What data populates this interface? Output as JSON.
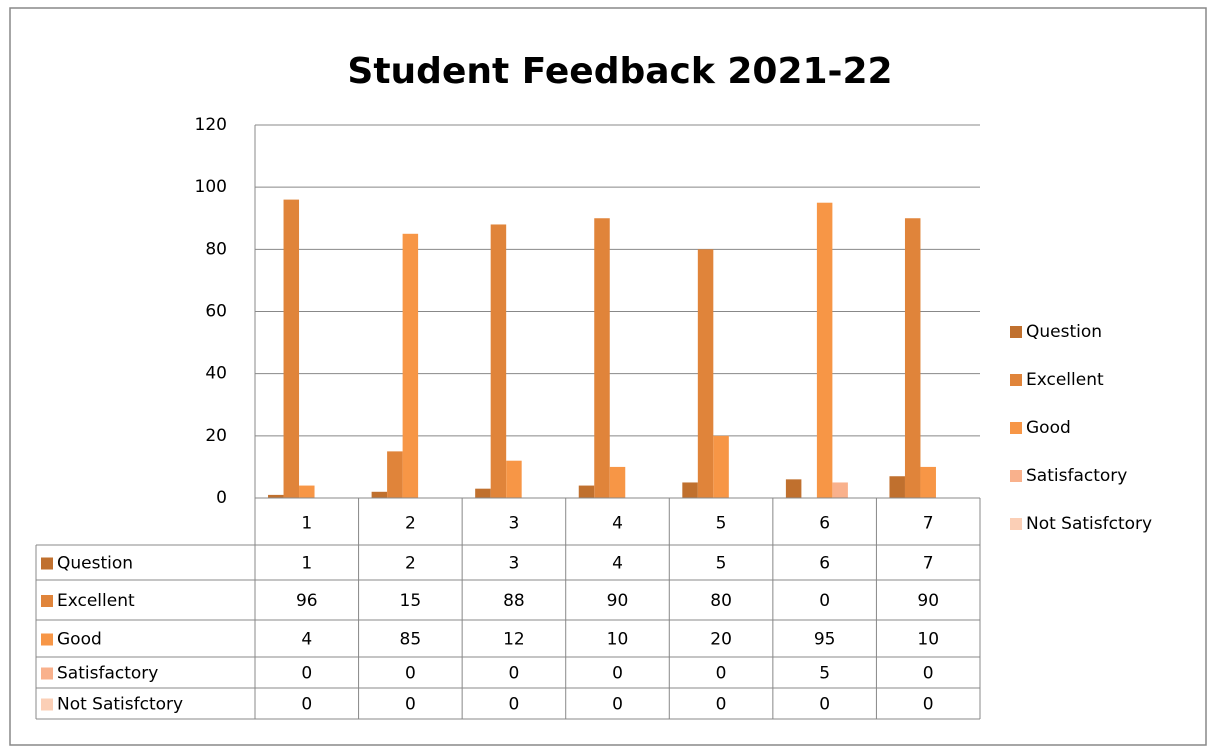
{
  "chart_data": {
    "type": "bar",
    "title": "Student Feedback 2021-22",
    "categories": [
      "1",
      "2",
      "3",
      "4",
      "5",
      "6",
      "7"
    ],
    "series": [
      {
        "name": "Question",
        "color": "#c0702e",
        "values": [
          1,
          2,
          3,
          4,
          5,
          6,
          7
        ]
      },
      {
        "name": "Excellent",
        "color": "#e0843a",
        "values": [
          96,
          15,
          88,
          90,
          80,
          0,
          90
        ]
      },
      {
        "name": "Good",
        "color": "#f79646",
        "values": [
          4,
          85,
          12,
          10,
          20,
          95,
          10
        ]
      },
      {
        "name": "Satisfactory",
        "color": "#f9b18c",
        "values": [
          0,
          0,
          0,
          0,
          0,
          5,
          0
        ]
      },
      {
        "name": "Not Satisfctory",
        "color": "#fbcfb6",
        "values": [
          0,
          0,
          0,
          0,
          0,
          0,
          0
        ]
      }
    ],
    "ylim": [
      0,
      120
    ],
    "yticks": [
      0,
      20,
      40,
      60,
      80,
      100,
      120
    ],
    "grid": true,
    "legend": "right",
    "data_table": true
  }
}
